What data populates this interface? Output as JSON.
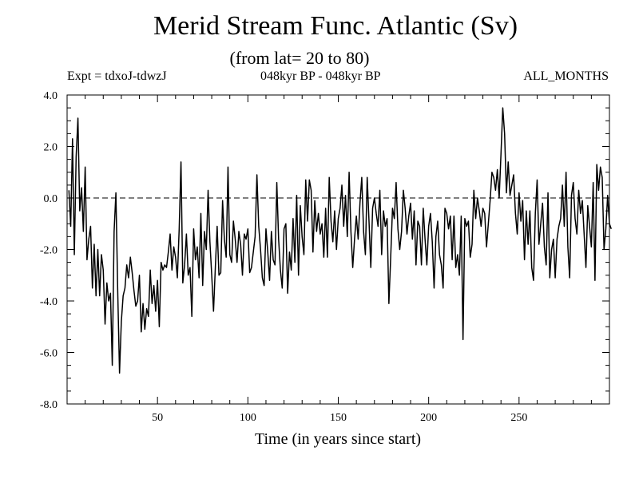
{
  "chart_data": {
    "type": "line",
    "title": "Merid Stream Func. Atlantic (Sv)",
    "subtitle": "(from lat= 20 to 80)",
    "header_left": "Expt = tdxoJ-tdwzJ",
    "header_center": "048kyr BP - 048kyr BP",
    "header_right": "ALL_MONTHS",
    "xlabel": "Time (in years since start)",
    "ylabel": "",
    "xlim": [
      0,
      300
    ],
    "ylim": [
      -8.0,
      4.0
    ],
    "xticks": [
      50,
      100,
      150,
      200,
      250
    ],
    "yticks": [
      -8.0,
      -6.0,
      -4.0,
      -2.0,
      0.0,
      2.0,
      4.0
    ],
    "ytick_labels": [
      "-8.0",
      "-6.0",
      "-4.0",
      "-2.0",
      "0.0",
      "2.0",
      "4.0"
    ],
    "zero_line": "dashed",
    "grid": false,
    "line_color": "#000000",
    "x_start": 1,
    "x_step": 1,
    "series": [
      {
        "values": [
          0.3,
          -1.1,
          2.3,
          -2.2,
          1.6,
          3.1,
          -0.5,
          0.4,
          -1.3,
          1.2,
          -2.4,
          -1.6,
          -1.1,
          -3.5,
          -1.8,
          -3.8,
          -2.0,
          -3.8,
          -2.2,
          -2.8,
          -4.9,
          -3.3,
          -4.0,
          -3.7,
          -6.5,
          -1.3,
          0.2,
          -3.6,
          -6.8,
          -4.8,
          -3.8,
          -3.5,
          -2.6,
          -3.1,
          -2.3,
          -2.9,
          -3.6,
          -4.2,
          -4.0,
          -3.0,
          -5.2,
          -4.1,
          -5.1,
          -4.3,
          -4.6,
          -2.8,
          -4.1,
          -3.4,
          -4.4,
          -3.2,
          -5.0,
          -2.5,
          -2.8,
          -2.6,
          -2.7,
          -2.1,
          -1.4,
          -2.8,
          -1.9,
          -2.3,
          -3.1,
          -1.2,
          1.4,
          -3.3,
          -2.6,
          -1.4,
          -3.0,
          -2.7,
          -4.6,
          -1.2,
          -2.4,
          -1.9,
          -3.1,
          -0.6,
          -3.4,
          -1.3,
          -2.0,
          0.3,
          -1.7,
          -3.0,
          -4.4,
          -2.7,
          -1.1,
          -3.0,
          -2.9,
          -0.1,
          -1.6,
          -2.3,
          1.2,
          -2.2,
          -2.5,
          -0.9,
          -1.6,
          -2.5,
          -1.3,
          -1.8,
          -3.0,
          -1.4,
          -1.6,
          -1.2,
          -2.9,
          -2.7,
          -2.1,
          -1.5,
          0.9,
          -1.1,
          -2.0,
          -3.1,
          -3.4,
          -1.2,
          -2.1,
          -3.2,
          -1.3,
          -2.4,
          -2.6,
          0.6,
          -1.6,
          -2.8,
          -3.5,
          -1.2,
          -1.0,
          -3.7,
          -2.1,
          -2.8,
          -0.8,
          -2.5,
          0.1,
          -3.0,
          -0.3,
          -1.5,
          -2.2,
          0.7,
          -0.9,
          0.7,
          0.3,
          -2.1,
          -0.1,
          -1.3,
          -0.6,
          -1.4,
          -1.0,
          -2.3,
          -0.4,
          -2.3,
          0.8,
          -0.9,
          -1.7,
          -0.5,
          -2.0,
          -0.8,
          -0.4,
          0.5,
          -1.1,
          0.1,
          -1.5,
          1.0,
          -1.3,
          -2.7,
          -1.6,
          -0.7,
          -1.6,
          -0.2,
          0.8,
          -1.3,
          -2.2,
          0.8,
          -0.9,
          -2.7,
          -0.4,
          0.0,
          -0.6,
          -1.1,
          0.3,
          -2.2,
          -0.5,
          -1.1,
          -0.8,
          -4.1,
          -2.3,
          -0.4,
          -0.8,
          0.6,
          -1.2,
          -2.0,
          -1.3,
          0.3,
          -0.4,
          -1.4,
          -0.7,
          -0.2,
          -1.6,
          -0.5,
          -2.6,
          -0.9,
          -1.1,
          -2.6,
          -0.4,
          -1.6,
          -2.6,
          -1.1,
          -0.6,
          -1.7,
          -3.5,
          -1.5,
          -0.9,
          -2.2,
          -2.6,
          -3.5,
          -0.4,
          -0.6,
          -1.2,
          -0.7,
          -2.4,
          -0.7,
          -2.7,
          -2.2,
          -3.0,
          -0.7,
          -5.5,
          -0.8,
          -1.1,
          -0.9,
          -2.3,
          -1.8,
          0.3,
          -0.8,
          0.0,
          -0.5,
          -1.1,
          -0.4,
          -0.6,
          -1.9,
          -1.0,
          -0.1,
          1.0,
          0.8,
          0.3,
          1.1,
          0.0,
          1.7,
          3.5,
          2.5,
          0.2,
          1.4,
          0.1,
          0.5,
          0.9,
          -0.6,
          -1.4,
          0.2,
          -0.9,
          -0.1,
          -2.4,
          -0.5,
          -1.8,
          -0.5,
          -2.7,
          -3.2,
          -0.6,
          0.7,
          -1.8,
          -1.0,
          -0.2,
          -1.9,
          -2.6,
          0.2,
          -3.1,
          -2.0,
          -1.6,
          -3.1,
          -1.6,
          -1.1,
          -0.8,
          0.5,
          -1.1,
          1.0,
          -1.9,
          -3.1,
          0.1,
          0.6,
          -0.8,
          -1.4,
          0.3,
          -0.6,
          -0.1,
          -1.4,
          -2.7,
          -0.3,
          -1.1,
          -1.9,
          0.6,
          -3.2,
          1.3,
          0.3,
          1.2,
          0.8,
          -2.0,
          -1.2,
          0.1,
          -1.0,
          -1.2
        ]
      }
    ]
  }
}
